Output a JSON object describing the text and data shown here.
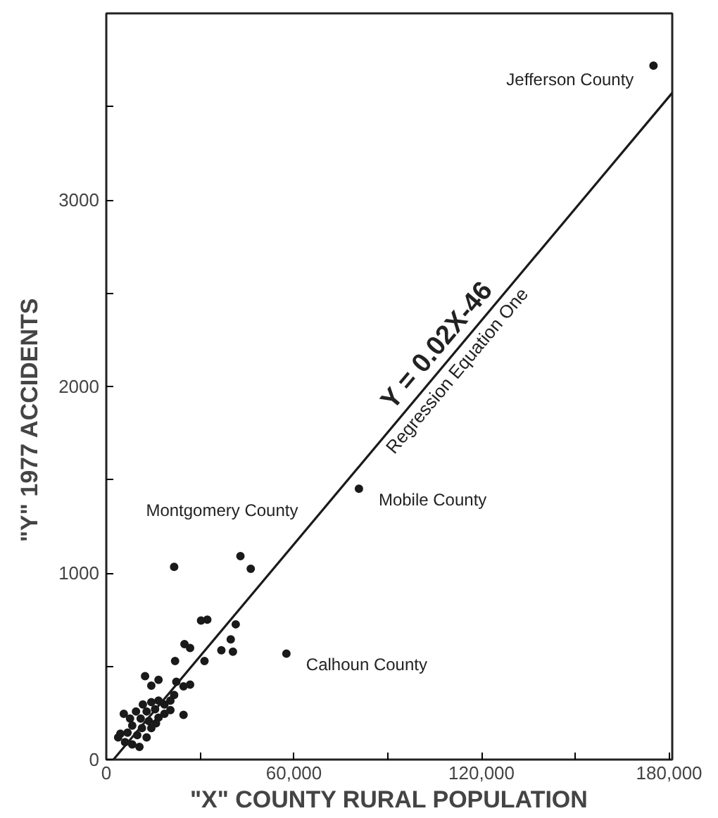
{
  "chart_data": {
    "type": "scatter",
    "xlabel": "\"X\" COUNTY RURAL POPULATION",
    "ylabel": "\"Y\"      1977      ACCIDENTS",
    "xlim": [
      0,
      181000
    ],
    "ylim": [
      0,
      4000
    ],
    "xticks": [
      0,
      {
        "value": 30000,
        "label": null
      },
      {
        "value": 60000,
        "label": "60,000"
      },
      {
        "value": 90000,
        "label": null
      },
      {
        "value": 120000,
        "label": "120,000"
      },
      {
        "value": 150000,
        "label": null
      },
      {
        "value": 180000,
        "label": "180,000"
      }
    ],
    "yticks": [
      0,
      {
        "value": 500,
        "label": null
      },
      1000,
      {
        "value": 1500,
        "label": null
      },
      2000,
      {
        "value": 2500,
        "label": null
      },
      3000,
      {
        "value": 3500,
        "label": null
      }
    ],
    "grid": false,
    "marker": "circle",
    "series": [
      {
        "color": "#1a1a1a",
        "x": [
          175000,
          80800,
          57600,
          21700,
          42900,
          46200,
          30300,
          32300,
          41400,
          25000,
          26800,
          39800,
          36800,
          40500,
          22000,
          31400,
          12400,
          16700,
          14400,
          22400,
          24700,
          26800,
          21700,
          20500,
          18600,
          16700,
          14400,
          11700,
          9500,
          12900,
          15600,
          18600,
          20500,
          24700,
          5600,
          7600,
          11000,
          13600,
          15900,
          8300,
          11400,
          6800,
          4500,
          9900,
          12900,
          6000,
          8300,
          10600,
          14400,
          16700,
          3800
        ],
        "values": [
          3720,
          1452,
          568,
          1033,
          1091,
          1023,
          745,
          750,
          725,
          619,
          598,
          644,
          586,
          578,
          528,
          528,
          447,
          427,
          396,
          417,
          392,
          402,
          346,
          316,
          295,
          316,
          308,
          295,
          258,
          258,
          270,
          245,
          265,
          240,
          245,
          220,
          220,
          207,
          194,
          182,
          169,
          144,
          139,
          131,
          119,
          93,
          81,
          68,
          169,
          225,
          119
        ]
      },
      {
        "type": "line",
        "marker": "none",
        "color": "#1a1a1a",
        "x": [
          2300,
          181000
        ],
        "values": [
          0,
          3574
        ]
      }
    ],
    "annotations": [
      {
        "text": "Jefferson County",
        "x": 175000,
        "y": 3720
      },
      {
        "text": "Mobile County",
        "x": 80800,
        "y": 1452
      },
      {
        "text": "Montgomery County",
        "x": 21700,
        "y": 1033
      },
      {
        "text": "Calhoun County",
        "x": 57600,
        "y": 568
      },
      "Y = 0.02X-46",
      "Regression Equation One"
    ]
  }
}
